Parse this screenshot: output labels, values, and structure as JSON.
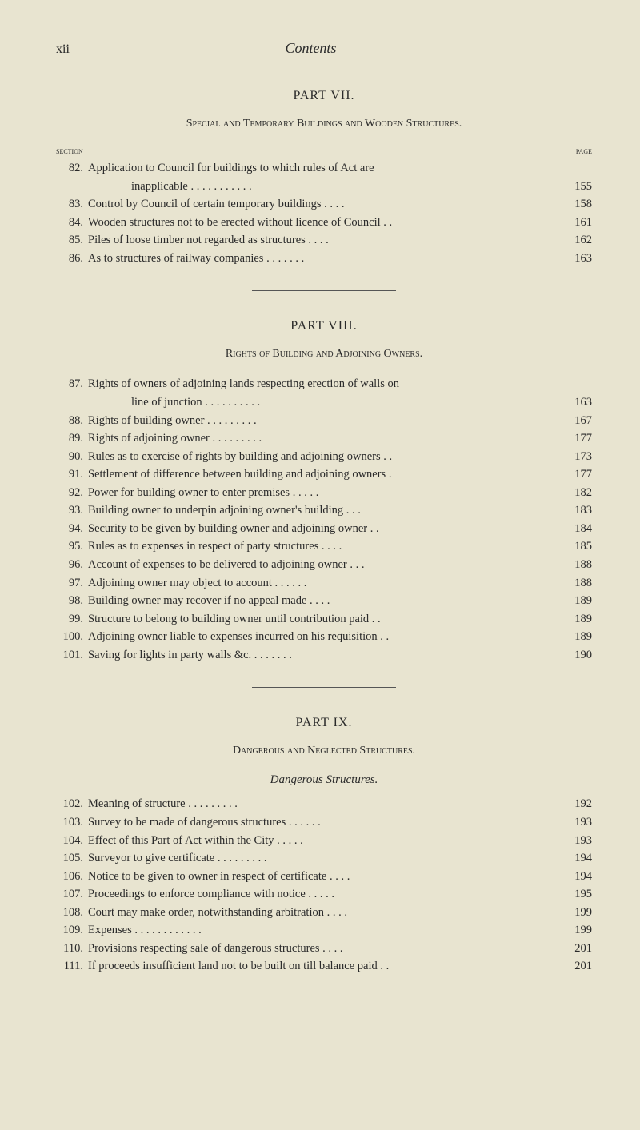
{
  "pageNumber": "xii",
  "runningTitle": "Contents",
  "labels": {
    "section": "section",
    "page": "page"
  },
  "parts": [
    {
      "heading": "PART VII.",
      "subtitle": "Special and Temporary Buildings and Wooden Structures.",
      "showLabels": true,
      "entries": [
        {
          "num": "82.",
          "text": "Application to Council for buildings to which rules of Act are",
          "cont": "inapplicable . . . . . . . . . . .",
          "page": "155"
        },
        {
          "num": "83.",
          "text": "Control by Council of certain temporary buildings . . . .",
          "page": "158"
        },
        {
          "num": "84.",
          "text": "Wooden structures not to be erected without licence of Council . .",
          "page": "161"
        },
        {
          "num": "85.",
          "text": "Piles of loose timber not regarded as structures . . . .",
          "page": "162"
        },
        {
          "num": "86.",
          "text": "As to structures of railway companies . . . . . . .",
          "page": "163"
        }
      ]
    },
    {
      "heading": "PART VIII.",
      "subtitle": "Rights of Building and Adjoining Owners.",
      "entries": [
        {
          "num": "87.",
          "text": "Rights of owners of adjoining lands respecting erection of walls on",
          "cont": "line of junction . . . . . . . . . .",
          "page": "163"
        },
        {
          "num": "88.",
          "text": "Rights of building owner . . . . . . . . .",
          "page": "167"
        },
        {
          "num": "89.",
          "text": "Rights of adjoining owner . . . . . . . . .",
          "page": "177"
        },
        {
          "num": "90.",
          "text": "Rules as to exercise of rights by building and adjoining owners . .",
          "page": "173"
        },
        {
          "num": "91.",
          "text": "Settlement of difference between building and adjoining owners .",
          "page": "177"
        },
        {
          "num": "92.",
          "text": "Power for building owner to enter premises . . . . .",
          "page": "182"
        },
        {
          "num": "93.",
          "text": "Building owner to underpin adjoining owner's building . . .",
          "page": "183"
        },
        {
          "num": "94.",
          "text": "Security to be given by building owner and adjoining owner . .",
          "page": "184"
        },
        {
          "num": "95.",
          "text": "Rules as to expenses in respect of party structures . . . .",
          "page": "185"
        },
        {
          "num": "96.",
          "text": "Account of expenses to be delivered to adjoining owner . . .",
          "page": "188"
        },
        {
          "num": "97.",
          "text": "Adjoining owner may object to account . . . . . .",
          "page": "188"
        },
        {
          "num": "98.",
          "text": "Building owner may recover if no appeal made . . . .",
          "page": "189"
        },
        {
          "num": "99.",
          "text": "Structure to belong to building owner until contribution paid . .",
          "page": "189"
        },
        {
          "num": "100.",
          "text": "Adjoining owner liable to expenses incurred on his requisition . .",
          "page": "189"
        },
        {
          "num": "101.",
          "text": "Saving for lights in party walls &c. . . . . . . .",
          "page": "190"
        }
      ]
    },
    {
      "heading": "PART IX.",
      "subtitle": "Dangerous and Neglected Structures.",
      "subsection": "Dangerous Structures.",
      "entries": [
        {
          "num": "102.",
          "text": "Meaning of structure . . . . . . . . .",
          "page": "192"
        },
        {
          "num": "103.",
          "text": "Survey to be made of dangerous structures . . . . . .",
          "page": "193"
        },
        {
          "num": "104.",
          "text": "Effect of this Part of Act within the City . . . . .",
          "page": "193"
        },
        {
          "num": "105.",
          "text": "Surveyor to give certificate . . . . . . . . .",
          "page": "194"
        },
        {
          "num": "106.",
          "text": "Notice to be given to owner in respect of certificate . . . .",
          "page": "194"
        },
        {
          "num": "107.",
          "text": "Proceedings to enforce compliance with notice . . . . .",
          "page": "195"
        },
        {
          "num": "108.",
          "text": "Court may make order, notwithstanding arbitration . . . .",
          "page": "199"
        },
        {
          "num": "109.",
          "text": "Expenses . . . . . . . . . . . .",
          "page": "199"
        },
        {
          "num": "110.",
          "text": "Provisions respecting sale of dangerous structures . . . .",
          "page": "201"
        },
        {
          "num": "111.",
          "text": "If proceeds insufficient land not to be built on till balance paid . .",
          "page": "201"
        }
      ]
    }
  ]
}
